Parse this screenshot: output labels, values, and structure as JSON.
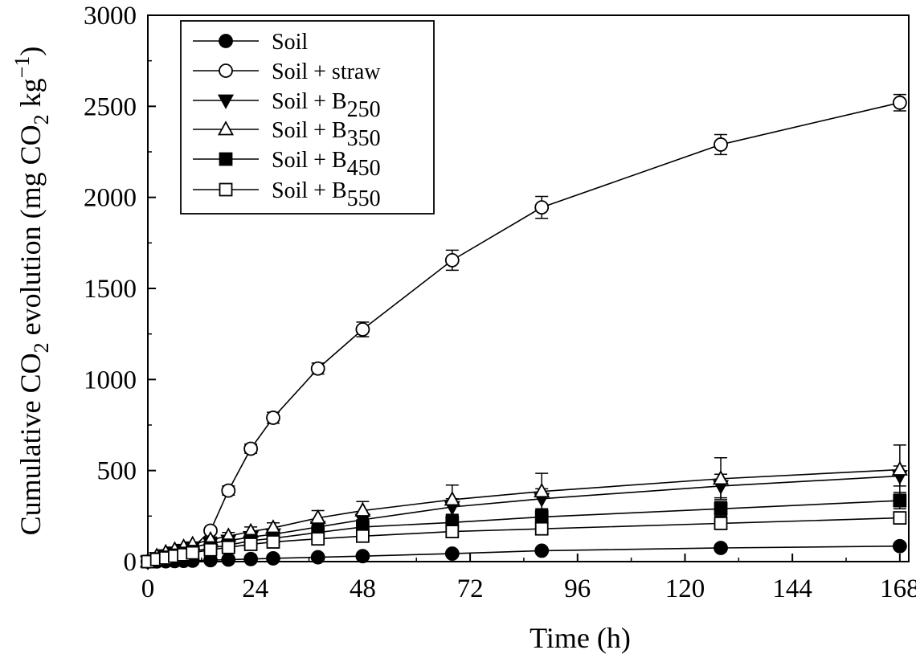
{
  "chart_data": {
    "type": "line",
    "xlabel": "Time (h)",
    "ylabel": {
      "prefix": "Cumulative CO",
      "sub": "2",
      "middle": " evolution (mg CO",
      "sub2": "2",
      "unit": " kg",
      "sup": "−1",
      "suffix": ")"
    },
    "xlim": [
      0,
      170
    ],
    "ylim": [
      0,
      3000
    ],
    "xticks": [
      0,
      24,
      48,
      72,
      96,
      120,
      144,
      168
    ],
    "yticks": [
      0,
      500,
      1000,
      1500,
      2000,
      2500,
      3000
    ],
    "legend_position": "top-left",
    "grid": false,
    "x": [
      0,
      2,
      4,
      6,
      8,
      10,
      14,
      18,
      23,
      28,
      38,
      48,
      68,
      88,
      128,
      168
    ],
    "series": [
      {
        "name": "Soil",
        "sub": "",
        "marker": "circle",
        "filled": true,
        "values": [
          0,
          1,
          2,
          3,
          4,
          5,
          8,
          11,
          14,
          18,
          24,
          30,
          44,
          60,
          75,
          85
        ],
        "errors": [
          0,
          1,
          1,
          1,
          1,
          2,
          3,
          3,
          4,
          4,
          4,
          5,
          6,
          8,
          10,
          12
        ]
      },
      {
        "name": "Soil + straw",
        "sub": "",
        "marker": "circle",
        "filled": false,
        "values": [
          0,
          10,
          20,
          35,
          50,
          75,
          170,
          390,
          620,
          790,
          1060,
          1275,
          1655,
          1945,
          2290,
          2520
        ],
        "errors": [
          0,
          3,
          4,
          5,
          6,
          8,
          15,
          25,
          25,
          30,
          30,
          40,
          55,
          60,
          55,
          45
        ]
      },
      {
        "name": "Soil + B",
        "sub": "250",
        "marker": "triangle-down",
        "filled": true,
        "values": [
          0,
          20,
          35,
          50,
          65,
          78,
          100,
          115,
          135,
          150,
          190,
          230,
          300,
          345,
          415,
          470
        ],
        "errors": [
          0,
          4,
          5,
          6,
          8,
          10,
          12,
          15,
          18,
          20,
          28,
          35,
          45,
          55,
          65,
          55
        ]
      },
      {
        "name": "Soil + B",
        "sub": "350",
        "marker": "triangle-up",
        "filled": false,
        "values": [
          0,
          30,
          50,
          65,
          80,
          95,
          120,
          140,
          165,
          185,
          240,
          280,
          340,
          385,
          455,
          505
        ],
        "errors": [
          0,
          5,
          6,
          8,
          10,
          12,
          15,
          20,
          25,
          28,
          40,
          50,
          80,
          100,
          115,
          135
        ]
      },
      {
        "name": "Soil + B",
        "sub": "450",
        "marker": "square",
        "filled": true,
        "values": [
          0,
          14,
          24,
          35,
          45,
          55,
          75,
          90,
          115,
          128,
          160,
          190,
          215,
          245,
          290,
          335
        ],
        "errors": [
          0,
          3,
          4,
          5,
          6,
          8,
          10,
          12,
          14,
          15,
          20,
          25,
          30,
          35,
          40,
          45
        ]
      },
      {
        "name": "Soil + B",
        "sub": "550",
        "marker": "square",
        "filled": false,
        "values": [
          0,
          12,
          20,
          30,
          38,
          48,
          65,
          78,
          95,
          108,
          125,
          140,
          165,
          180,
          210,
          240
        ],
        "errors": [
          0,
          3,
          4,
          5,
          6,
          7,
          8,
          10,
          12,
          14,
          16,
          18,
          22,
          25,
          28,
          30
        ]
      }
    ]
  }
}
